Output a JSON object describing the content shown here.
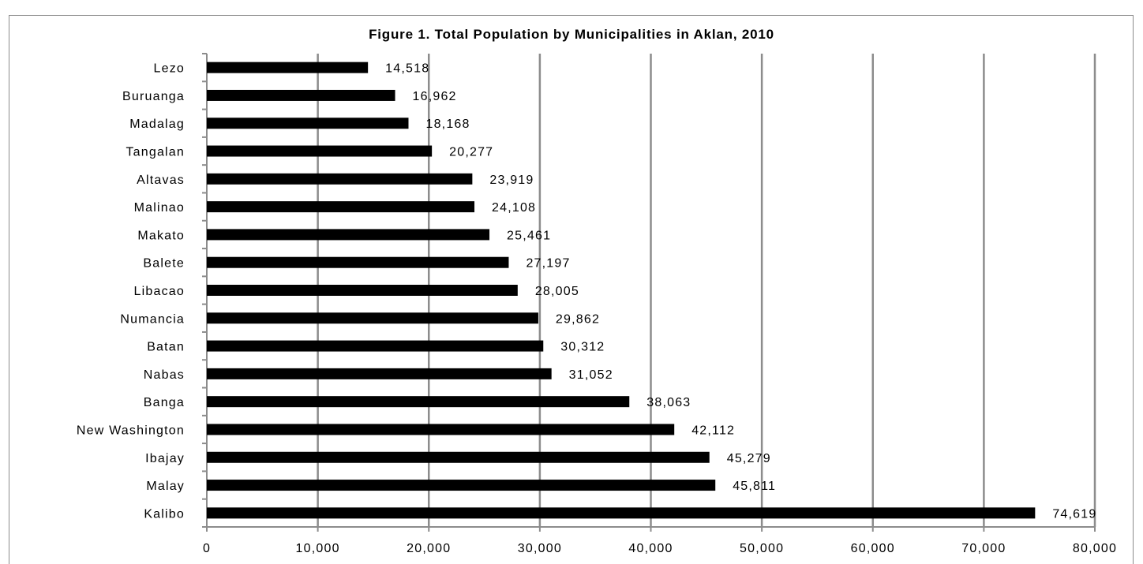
{
  "chart_data": {
    "type": "bar",
    "orientation": "horizontal",
    "title": "Figure 1. Total Population by Municipalities in Aklan, 2010",
    "categories": [
      "Lezo",
      "Buruanga",
      "Madalag",
      "Tangalan",
      "Altavas",
      "Malinao",
      "Makato",
      "Balete",
      "Libacao",
      "Numancia",
      "Batan",
      "Nabas",
      "Banga",
      "New Washington",
      "Ibajay",
      "Malay",
      "Kalibo"
    ],
    "values": [
      14518,
      16962,
      18168,
      20277,
      23919,
      24108,
      25461,
      27197,
      28005,
      29862,
      30312,
      31052,
      38063,
      42112,
      45279,
      45811,
      74619
    ],
    "value_labels": [
      "14,518",
      "16,962",
      "18,168",
      "20,277",
      "23,919",
      "24,108",
      "25,461",
      "27,197",
      "28,005",
      "29,862",
      "30,312",
      "31,052",
      "38,063",
      "42,112",
      "45,279",
      "45,811",
      "74,619"
    ],
    "xlim": [
      0,
      80000
    ],
    "xticks": [
      0,
      10000,
      20000,
      30000,
      40000,
      50000,
      60000,
      70000,
      80000
    ],
    "xtick_labels": [
      "0",
      "10,000",
      "20,000",
      "30,000",
      "40,000",
      "50,000",
      "60,000",
      "70,000",
      "80,000"
    ],
    "grid": "vertical",
    "legend": "none",
    "bar_color": "#000000",
    "grid_color": "#8c8c8c"
  }
}
